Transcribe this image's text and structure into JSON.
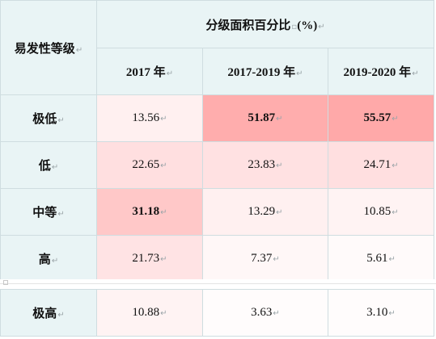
{
  "table": {
    "row_header_title": "易发性等级",
    "group_title": "分级面积百分比",
    "group_unit": "(%)",
    "columns": [
      "2017 年",
      "2017-2019 年",
      "2019-2020 年"
    ],
    "rows": [
      {
        "label": "极低",
        "values": [
          "13.56",
          "51.87",
          "55.57"
        ],
        "bold": [
          false,
          true,
          true
        ],
        "colors": [
          "#fff0f0",
          "#ffadad",
          "#ffa9a9"
        ]
      },
      {
        "label": "低",
        "values": [
          "22.65",
          "23.83",
          "24.71"
        ],
        "colors": [
          "#ffdfe0",
          "#ffe1e2",
          "#ffdfe0"
        ]
      },
      {
        "label": "中等",
        "values": [
          "31.18",
          "13.29",
          "10.85"
        ],
        "bold": [
          true,
          false,
          false
        ],
        "colors": [
          "#ffc8c8",
          "#fff0f0",
          "#fff3f3"
        ]
      },
      {
        "label": "高",
        "values": [
          "21.73",
          "7.37",
          "5.61"
        ],
        "colors": [
          "#ffe3e4",
          "#fff7f7",
          "#fffafa"
        ]
      },
      {
        "label": "极高",
        "values": [
          "10.88",
          "3.63",
          "3.10"
        ],
        "colors": [
          "#fff3f3",
          "#fffcfc",
          "#fffcfc"
        ]
      }
    ]
  },
  "colors": {
    "header_bg": "#e9f4f5",
    "grid_line": "#cfdde0",
    "mark": "#9aa4a8"
  },
  "marks": {
    "paragraph": "↵",
    "dot": "▫"
  }
}
